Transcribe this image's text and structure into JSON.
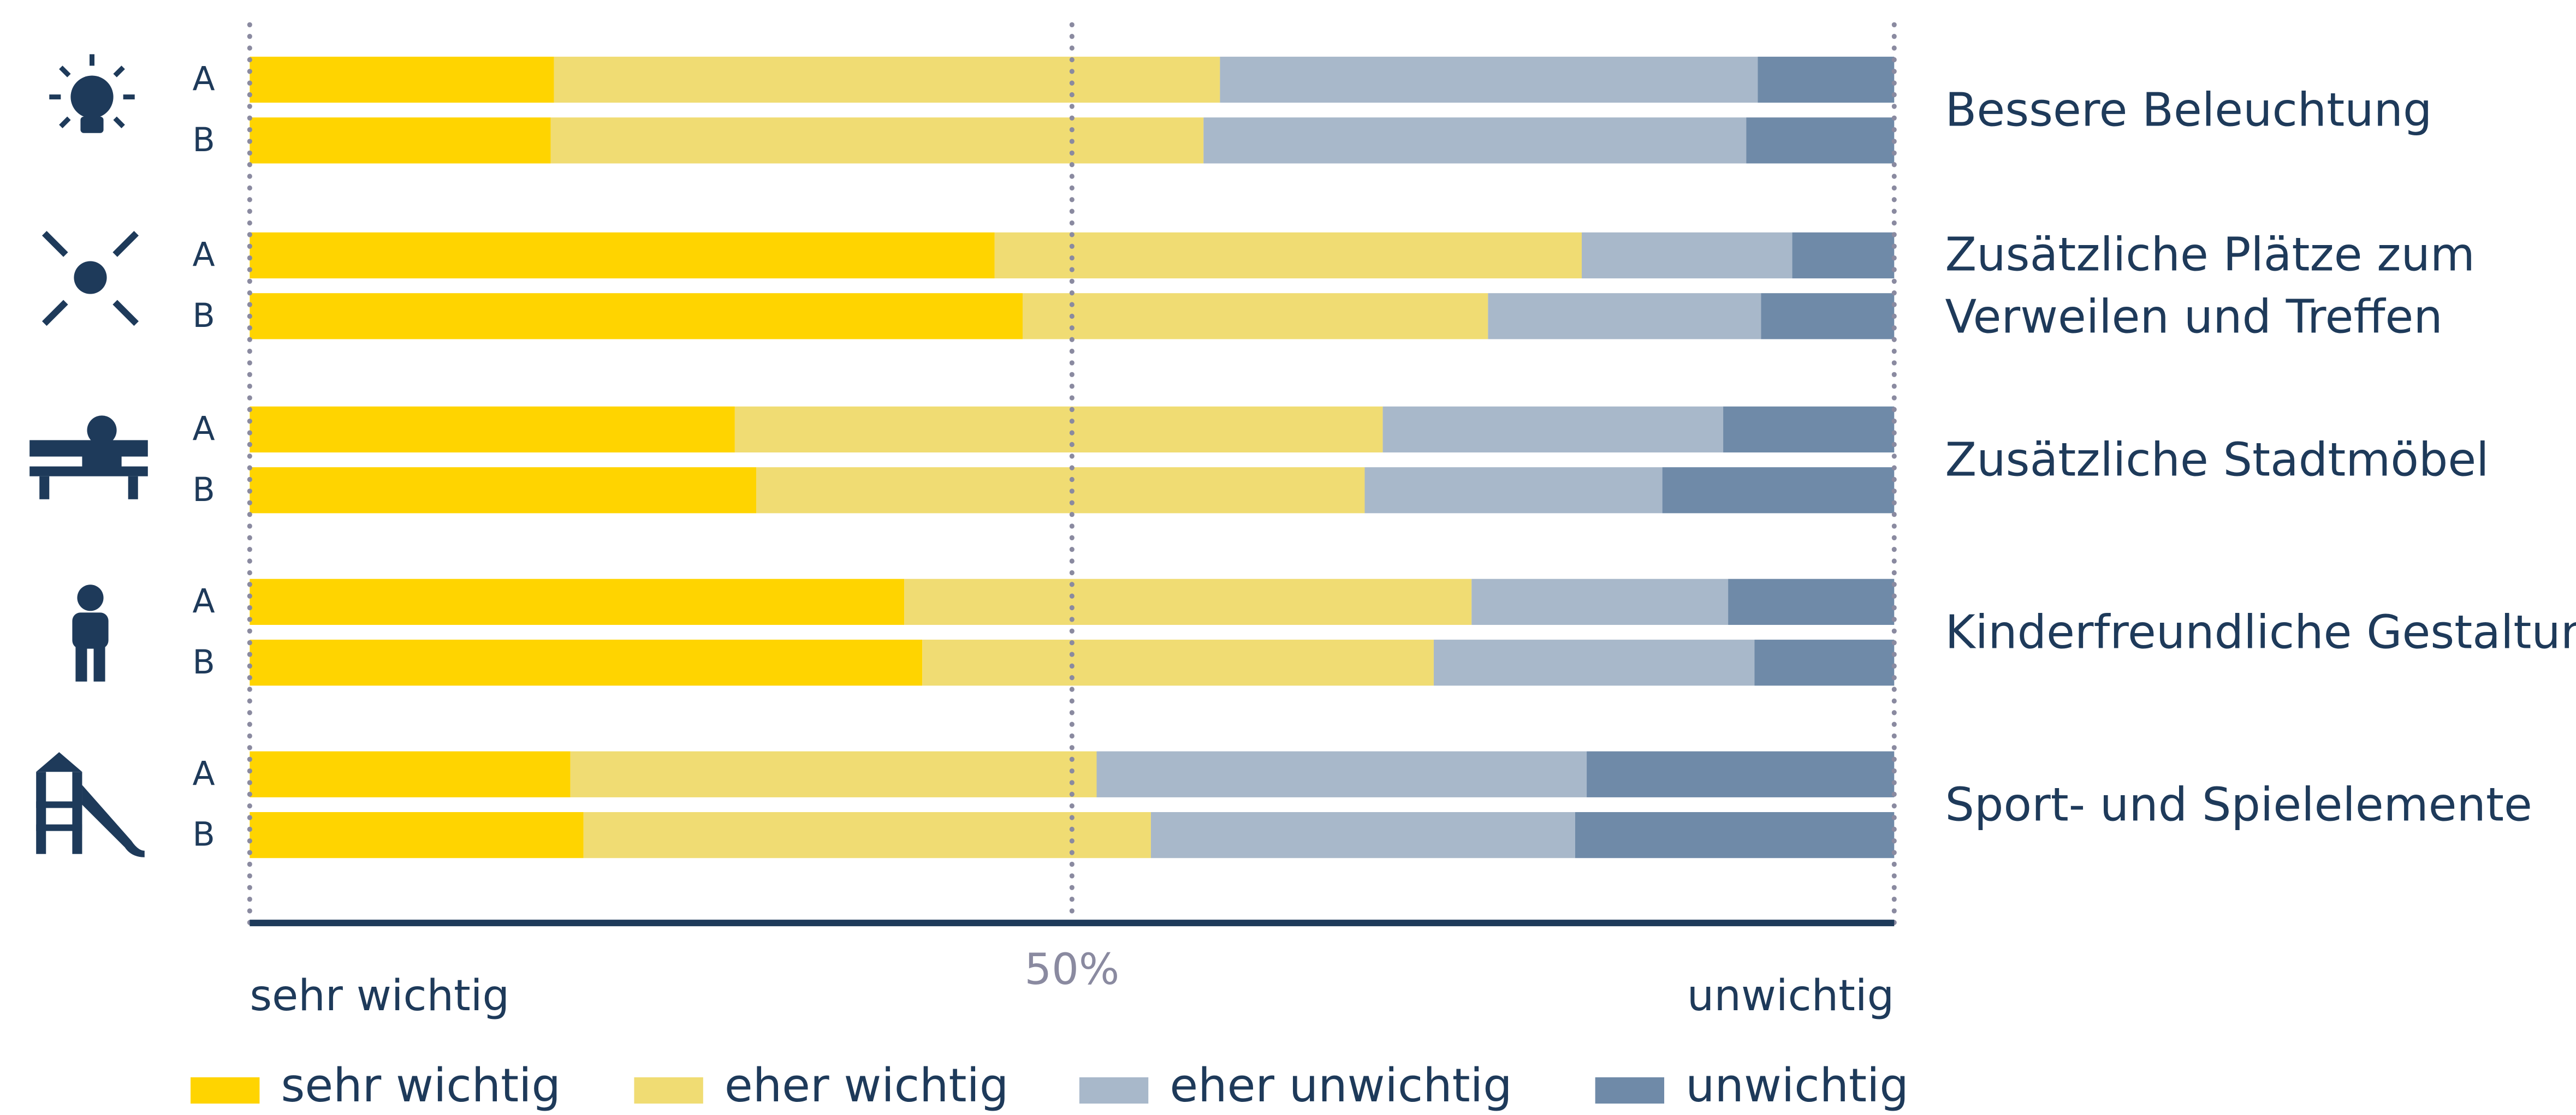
{
  "chart_data": {
    "type": "stacked_bar_horizontal",
    "categories": [
      "A",
      "B",
      "A",
      "B",
      "A",
      "B",
      "A",
      "B",
      "A",
      "B"
    ],
    "groups": [
      [
        "Bessere Beleuchtung"
      ],
      [
        "Zusätzliche Plätze zum",
        "Verweilen und Treffen"
      ],
      [
        "Zusätzliche Stadtmöbel"
      ],
      [
        "Kinderfreundliche Gestaltung"
      ],
      [
        "Sport- und Spielelemente"
      ]
    ],
    "series": [
      {
        "name": "sehr wichtig",
        "color": "#ffd400",
        "values": [
          18.5,
          18.3,
          45.3,
          47.0,
          29.5,
          30.8,
          39.8,
          40.9,
          19.5,
          20.3
        ]
      },
      {
        "name": "eher wichtig",
        "color": "#f0dc73",
        "values": [
          40.5,
          39.7,
          35.7,
          28.3,
          39.4,
          37.0,
          34.5,
          31.1,
          32.0,
          34.5
        ]
      },
      {
        "name": "eher unwichtig",
        "color": "#a8b8ca",
        "values": [
          32.7,
          33.0,
          12.8,
          16.6,
          20.7,
          18.1,
          15.6,
          19.5,
          29.8,
          25.8
        ]
      },
      {
        "name": "unwichtig",
        "color": "#6f8aa8",
        "values": [
          8.3,
          9.0,
          6.2,
          8.1,
          10.4,
          14.1,
          10.1,
          8.5,
          18.7,
          19.4
        ]
      }
    ],
    "xlim": [
      0,
      100
    ],
    "xticks": [
      {
        "value": 0,
        "label": "sehr wichtig"
      },
      {
        "value": 50,
        "label": "50%"
      },
      {
        "value": 100,
        "label": "unwichtig"
      }
    ],
    "grid": true,
    "legend": "bottom"
  }
}
